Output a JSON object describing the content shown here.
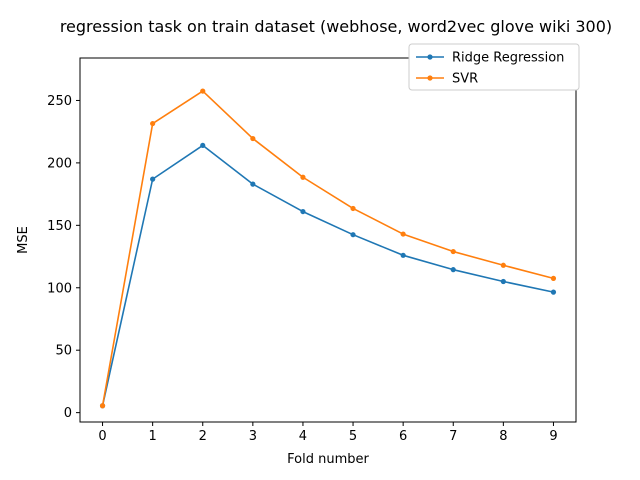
{
  "chart_data": {
    "type": "line",
    "title": "regression task on train dataset (webhose, word2vec glove wiki 300)",
    "xlabel": "Fold number",
    "ylabel": "MSE",
    "x": [
      0,
      1,
      2,
      3,
      4,
      5,
      6,
      7,
      8,
      9
    ],
    "x_ticks": [
      0,
      1,
      2,
      3,
      4,
      5,
      6,
      7,
      8,
      9
    ],
    "y_ticks": [
      0,
      50,
      100,
      150,
      200,
      250
    ],
    "xlim": [
      -0.45,
      9.45
    ],
    "ylim": [
      -7.5,
      284
    ],
    "grid": false,
    "legend_position": "top-right",
    "series": [
      {
        "name": "Ridge Regression",
        "color": "#1f77b4",
        "values": [
          5.5,
          187,
          214,
          183,
          161,
          142.5,
          126,
          114.5,
          105,
          96.5
        ]
      },
      {
        "name": "SVR",
        "color": "#ff7f0e",
        "values": [
          5.5,
          231.5,
          257.5,
          219.5,
          188.5,
          163.5,
          143,
          129,
          118,
          107.5
        ]
      }
    ]
  }
}
